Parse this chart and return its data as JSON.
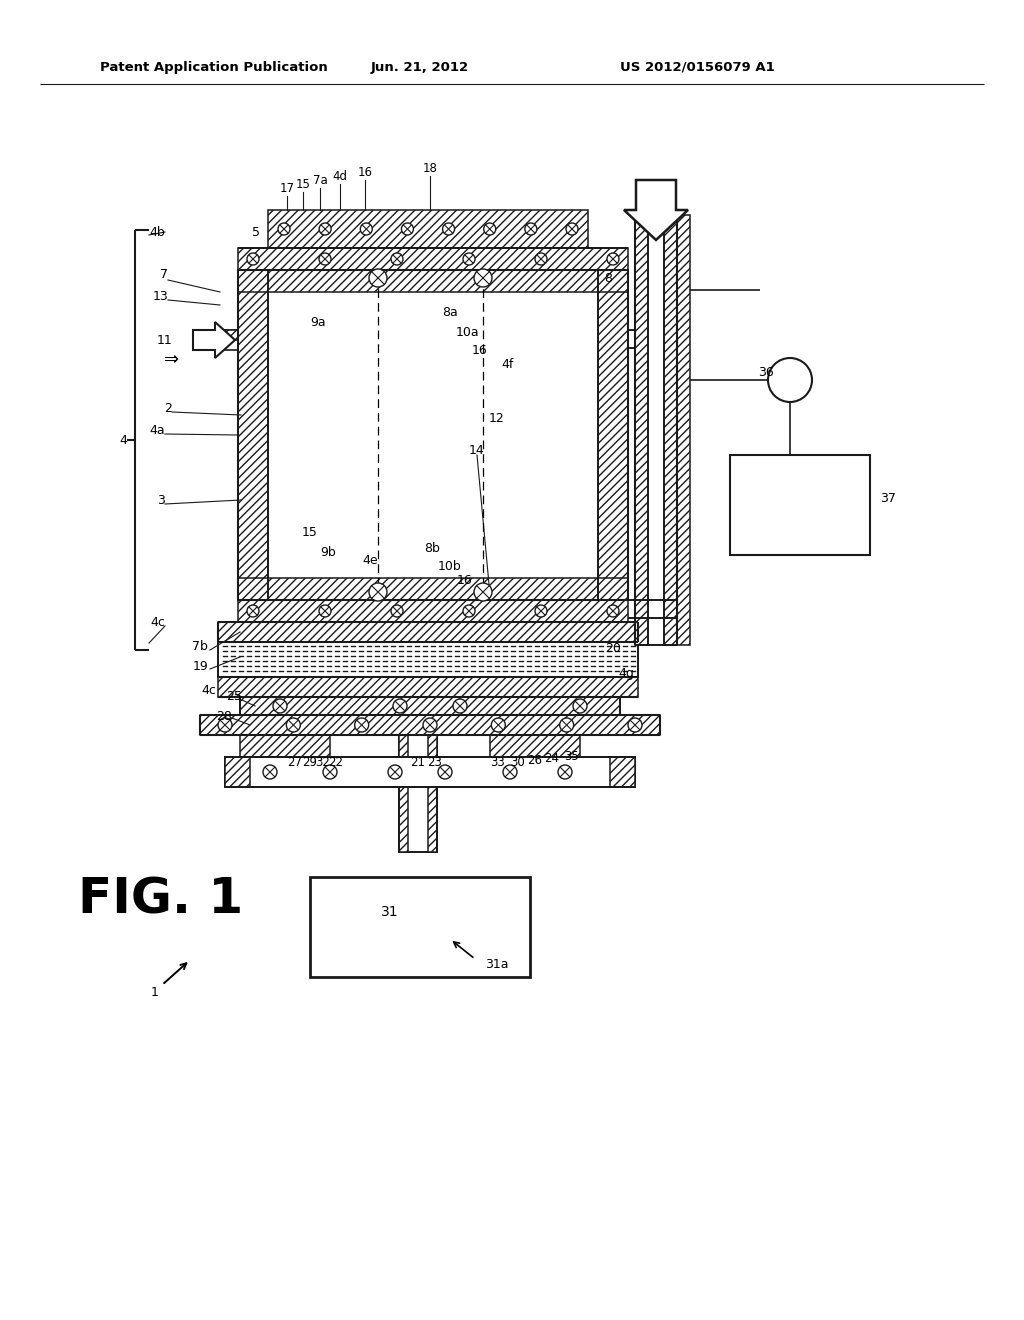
{
  "bg_color": "#ffffff",
  "header_left": "Patent Application Publication",
  "header_center": "Jun. 21, 2012",
  "header_right": "US 2012/0156079 A1",
  "fig_label": "FIG. 1",
  "lc": "#1a1a1a"
}
